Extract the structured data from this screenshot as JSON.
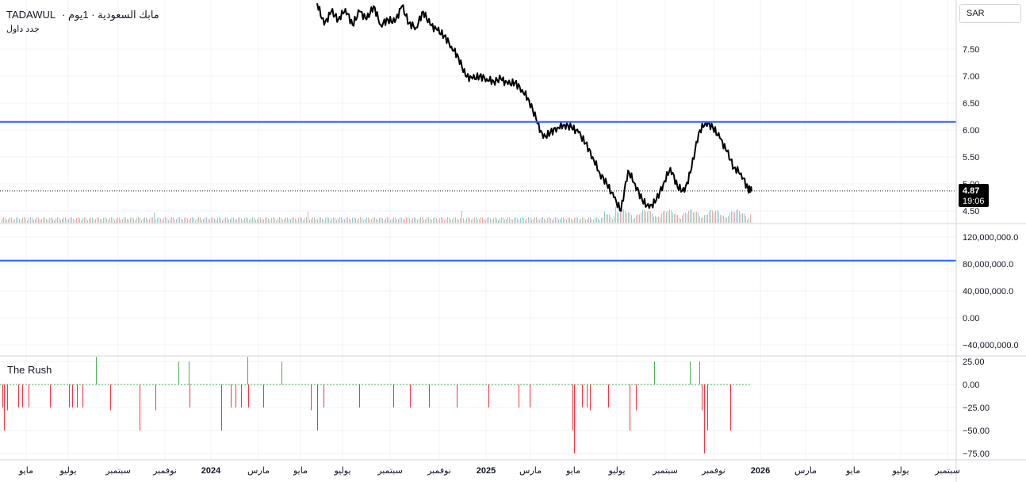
{
  "header": {
    "symbol": "TADAWUL",
    "title_rest": "· مابك السعودية · 1يوم",
    "subtitle": "جدد داول"
  },
  "currency": "SAR",
  "indicator_label": "The Rush",
  "price_label": {
    "price": "4.87",
    "time": "19:06"
  },
  "colors": {
    "grid": "#f0f3fa",
    "price_line": "#000000",
    "blue_line": "#2962ff",
    "vol_up": "#7fd3c9",
    "vol_down": "#f4a6a6",
    "rush_up": "#4caf50",
    "rush_down": "#f23645",
    "zero_line": "#4caf50",
    "axis_border": "#d1d4dc"
  },
  "chart_data": [
    {
      "type": "line",
      "name": "price-panel",
      "y_ticks": [
        "7.50",
        "7.00",
        "6.50",
        "6.00",
        "5.50",
        "5.00",
        "4.50"
      ],
      "y_tick_values": [
        7.5,
        7.0,
        6.5,
        6.0,
        5.5,
        5.0,
        4.5
      ],
      "ylim": [
        4.4,
        8.3
      ],
      "horizontal_level": 6.15,
      "last_price": 4.87,
      "price_path": [
        [
          0.0,
          8.35
        ],
        [
          0.01,
          7.95
        ],
        [
          0.02,
          8.2
        ],
        [
          0.03,
          8.05
        ],
        [
          0.04,
          8.25
        ],
        [
          0.05,
          7.95
        ],
        [
          0.06,
          8.2
        ],
        [
          0.07,
          8.05
        ],
        [
          0.08,
          8.3
        ],
        [
          0.09,
          7.95
        ],
        [
          0.1,
          8.05
        ],
        [
          0.11,
          8.0
        ],
        [
          0.12,
          8.3
        ],
        [
          0.13,
          7.98
        ],
        [
          0.14,
          7.9
        ],
        [
          0.15,
          8.2
        ],
        [
          0.16,
          7.95
        ],
        [
          0.17,
          7.85
        ],
        [
          0.18,
          7.75
        ],
        [
          0.19,
          7.55
        ],
        [
          0.2,
          7.35
        ],
        [
          0.21,
          7.0
        ],
        [
          0.22,
          6.95
        ],
        [
          0.23,
          7.0
        ],
        [
          0.24,
          6.95
        ],
        [
          0.25,
          6.9
        ],
        [
          0.26,
          6.95
        ],
        [
          0.27,
          6.85
        ],
        [
          0.28,
          6.88
        ],
        [
          0.29,
          6.75
        ],
        [
          0.3,
          6.55
        ],
        [
          0.31,
          6.2
        ],
        [
          0.32,
          5.85
        ],
        [
          0.33,
          5.95
        ],
        [
          0.34,
          6.05
        ],
        [
          0.35,
          6.1
        ],
        [
          0.36,
          6.05
        ],
        [
          0.37,
          5.95
        ],
        [
          0.38,
          5.75
        ],
        [
          0.39,
          5.5
        ],
        [
          0.4,
          5.2
        ],
        [
          0.41,
          5.0
        ],
        [
          0.42,
          4.75
        ],
        [
          0.43,
          4.5
        ],
        [
          0.44,
          5.25
        ],
        [
          0.45,
          5.0
        ],
        [
          0.46,
          4.7
        ],
        [
          0.47,
          4.55
        ],
        [
          0.48,
          4.7
        ],
        [
          0.49,
          5.0
        ],
        [
          0.5,
          5.3
        ],
        [
          0.51,
          4.95
        ],
        [
          0.52,
          4.85
        ],
        [
          0.53,
          5.3
        ],
        [
          0.54,
          5.95
        ],
        [
          0.55,
          6.15
        ],
        [
          0.56,
          6.05
        ],
        [
          0.57,
          5.85
        ],
        [
          0.58,
          5.6
        ],
        [
          0.59,
          5.3
        ],
        [
          0.6,
          5.2
        ],
        [
          0.61,
          4.9
        ],
        [
          0.615,
          4.87
        ]
      ]
    },
    {
      "type": "bar",
      "name": "volume-panel",
      "y_ticks": [
        "120,000,000.0",
        "80,000,000.0",
        "40,000,000.0",
        "0.00",
        "−40,000,000.0"
      ],
      "y_tick_values": [
        120000000,
        80000000,
        40000000,
        0,
        -40000000
      ],
      "horizontal_level": 85000000
    },
    {
      "type": "bar",
      "name": "the-rush",
      "y_ticks": [
        "25.00",
        "0.00",
        "−25.00",
        "−50.00",
        "−75.00"
      ],
      "y_tick_values": [
        25,
        0,
        -25,
        -50,
        -75
      ],
      "ylim": [
        -78,
        30
      ],
      "bars": [
        [
          3,
          -25
        ],
        [
          5,
          -50
        ],
        [
          9,
          -28
        ],
        [
          23,
          -25
        ],
        [
          28,
          -25
        ],
        [
          36,
          -25
        ],
        [
          63,
          -25
        ],
        [
          87,
          -25
        ],
        [
          91,
          -25
        ],
        [
          97,
          -25
        ],
        [
          104,
          -25
        ],
        [
          121,
          30
        ],
        [
          139,
          -28
        ],
        [
          176,
          -50
        ],
        [
          196,
          -28
        ],
        [
          225,
          25
        ],
        [
          238,
          25
        ],
        [
          239,
          -25
        ],
        [
          279,
          -50
        ],
        [
          291,
          -25
        ],
        [
          297,
          -25
        ],
        [
          304,
          -25
        ],
        [
          312,
          30
        ],
        [
          313,
          -25
        ],
        [
          332,
          -25
        ],
        [
          355,
          25
        ],
        [
          392,
          -28
        ],
        [
          400,
          -50
        ],
        [
          408,
          -25
        ],
        [
          453,
          -25
        ],
        [
          496,
          -25
        ],
        [
          517,
          -25
        ],
        [
          541,
          -25
        ],
        [
          576,
          -25
        ],
        [
          616,
          -25
        ],
        [
          654,
          -25
        ],
        [
          668,
          -25
        ],
        [
          722,
          -50
        ],
        [
          724,
          -75
        ],
        [
          734,
          -25
        ],
        [
          740,
          -25
        ],
        [
          744,
          -28
        ],
        [
          767,
          -25
        ],
        [
          794,
          -50
        ],
        [
          802,
          -28
        ],
        [
          825,
          25
        ],
        [
          870,
          25
        ],
        [
          882,
          25
        ],
        [
          885,
          -28
        ],
        [
          888,
          -75
        ],
        [
          892,
          -50
        ],
        [
          921,
          -50
        ]
      ]
    }
  ],
  "x_axis": {
    "labels": [
      {
        "text": "مايو",
        "x": 33
      },
      {
        "text": "يوليو",
        "x": 86
      },
      {
        "text": "سبتمبر",
        "x": 149
      },
      {
        "text": "نوفمبر",
        "x": 208
      },
      {
        "text": "2024",
        "x": 266
      },
      {
        "text": "مارس",
        "x": 326
      },
      {
        "text": "مايو",
        "x": 379
      },
      {
        "text": "يوليو",
        "x": 432
      },
      {
        "text": "سبتمبر",
        "x": 492
      },
      {
        "text": "نوفمبر",
        "x": 554
      },
      {
        "text": "2025",
        "x": 613
      },
      {
        "text": "مارس",
        "x": 669
      },
      {
        "text": "مايو",
        "x": 723
      },
      {
        "text": "يوليو",
        "x": 778
      },
      {
        "text": "سبتمبر",
        "x": 839
      },
      {
        "text": "نوفمبر",
        "x": 900
      },
      {
        "text": "2026",
        "x": 959
      },
      {
        "text": "مارس",
        "x": 1016
      },
      {
        "text": "مايو",
        "x": 1076
      },
      {
        "text": "يوليو",
        "x": 1136
      },
      {
        "text": "سبتمبر",
        "x": 1195
      }
    ]
  }
}
